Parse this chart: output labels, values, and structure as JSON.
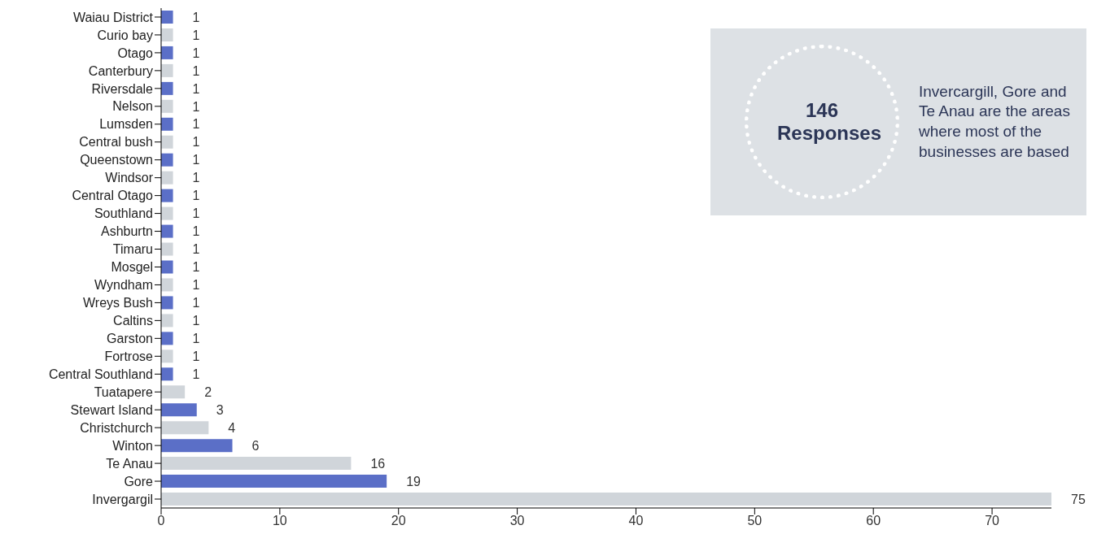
{
  "chart_data": {
    "type": "bar",
    "orientation": "horizontal",
    "categories": [
      "Waiau District",
      "Curio bay",
      "Otago",
      "Canterbury",
      "Riversdale",
      "Nelson",
      "Lumsden",
      "Central bush",
      "Queenstown",
      "Windsor",
      "Central Otago",
      "Southland",
      "Ashburtn",
      "Timaru",
      "Mosgel",
      "Wyndham",
      "Wreys Bush",
      "Caltins",
      "Garston",
      "Fortrose",
      "Central Southland",
      "Tuatapere",
      "Stewart Island",
      "Christchurch",
      "Winton",
      "Te Anau",
      "Gore",
      "Invergargil"
    ],
    "values": [
      1,
      1,
      1,
      1,
      1,
      1,
      1,
      1,
      1,
      1,
      1,
      1,
      1,
      1,
      1,
      1,
      1,
      1,
      1,
      1,
      1,
      2,
      3,
      4,
      6,
      16,
      19,
      75
    ],
    "colors": [
      "#5b6fc7",
      "#d0d5da",
      "#5b6fc7",
      "#d0d5da",
      "#5b6fc7",
      "#d0d5da",
      "#5b6fc7",
      "#d0d5da",
      "#5b6fc7",
      "#d0d5da",
      "#5b6fc7",
      "#d0d5da",
      "#5b6fc7",
      "#d0d5da",
      "#5b6fc7",
      "#d0d5da",
      "#5b6fc7",
      "#d0d5da",
      "#5b6fc7",
      "#d0d5da",
      "#5b6fc7",
      "#d0d5da",
      "#5b6fc7",
      "#d0d5da",
      "#5b6fc7",
      "#d0d5da",
      "#5b6fc7",
      "#d0d5da"
    ],
    "xlim": [
      0,
      75
    ],
    "xticks": [
      0,
      10,
      20,
      30,
      40,
      50,
      60,
      70
    ],
    "data_labels": true,
    "annotations": [
      "146 Responses",
      "Invercargill, Gore and Te Anau are the areas where most of the businesses are based"
    ]
  }
}
